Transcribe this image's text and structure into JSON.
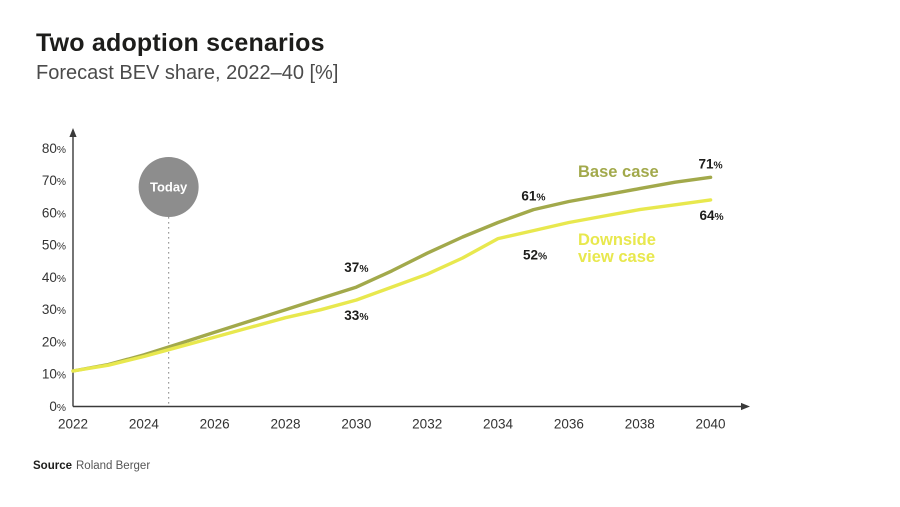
{
  "header": {
    "title": "Two adoption scenarios",
    "subtitle": "Forecast BEV share, 2022–40 [%]"
  },
  "source": {
    "label": "Source",
    "value": "Roland Berger"
  },
  "today": {
    "label": "Today",
    "year": 2024.7
  },
  "colors": {
    "base_case": "#a2a94b",
    "downside_case": "#e8e84e",
    "today_marker": "#8d8d8d",
    "axis": "#3a3a3a",
    "annotation_text": "#1d1d1b",
    "dotted_line": "#9a9a9a"
  },
  "chart_data": {
    "type": "line",
    "title": "Forecast BEV share, 2022–40 [%]",
    "xlabel": "",
    "ylabel": "",
    "xlim": [
      2022,
      2040
    ],
    "ylim": [
      0,
      80
    ],
    "grid": false,
    "legend_position": "inline-labels",
    "xticks": [
      2022,
      2024,
      2026,
      2028,
      2030,
      2032,
      2034,
      2036,
      2038,
      2040
    ],
    "yticks": [
      0,
      10,
      20,
      30,
      40,
      50,
      60,
      70,
      80
    ],
    "ytick_suffix": "%",
    "x": [
      2022,
      2023,
      2024,
      2025,
      2026,
      2027,
      2028,
      2029,
      2030,
      2031,
      2032,
      2033,
      2034,
      2035,
      2036,
      2037,
      2038,
      2039,
      2040
    ],
    "series": [
      {
        "name": "Base case",
        "name_lines": [
          "Base case"
        ],
        "color_key": "base_case",
        "values": [
          11,
          13,
          16,
          19.5,
          23,
          26.5,
          30,
          33.5,
          37,
          42,
          47.5,
          52.5,
          57,
          61,
          63.5,
          65.5,
          67.5,
          69.5,
          71
        ],
        "point_labels": [
          {
            "year": 2030,
            "value": 37,
            "text": "37%",
            "dx": 0,
            "dy": -15
          },
          {
            "year": 2035,
            "value": 61,
            "text": "61%",
            "dx": 0,
            "dy": -9
          },
          {
            "year": 2040,
            "value": 71,
            "text": "71%",
            "dx": 0,
            "dy": -9
          }
        ]
      },
      {
        "name": "Downside view case",
        "name_lines": [
          "Downside",
          "view case"
        ],
        "color_key": "downside_case",
        "values": [
          11,
          12.8,
          15.5,
          18.5,
          21.5,
          24.5,
          27.5,
          30,
          33,
          37,
          41,
          46,
          52,
          54.5,
          57,
          59,
          61,
          62.5,
          64
        ],
        "point_labels": [
          {
            "year": 2030,
            "value": 33,
            "text": "33%",
            "dx": 0,
            "dy": 20
          },
          {
            "year": 2034,
            "value": 52,
            "text": "52%",
            "dx": 37,
            "dy": 21
          },
          {
            "year": 2040,
            "value": 64,
            "text": "64%",
            "dx": 1,
            "dy": 20
          }
        ]
      }
    ]
  }
}
